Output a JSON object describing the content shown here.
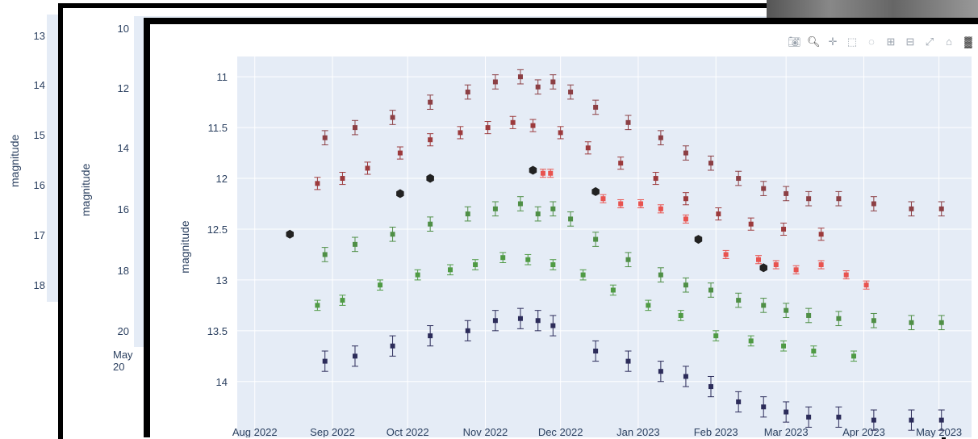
{
  "background_windows": [
    {
      "ylabel": "magnitude",
      "yticks": [
        "13",
        "14",
        "15",
        "16",
        "17",
        "18"
      ]
    },
    {
      "ylabel": "magnitude",
      "yticks": [
        "10",
        "12",
        "14",
        "16",
        "18",
        "20"
      ],
      "xtick_partial": "May 20"
    }
  ],
  "modebar": {
    "icons": [
      "camera-icon",
      "zoom-icon",
      "pan-icon",
      "box-select-icon",
      "lasso-select-icon",
      "zoom-in-icon",
      "zoom-out-icon",
      "autoscale-icon",
      "reset-axes-icon",
      "plotly-logo-icon"
    ]
  },
  "chart_data": {
    "type": "scatter",
    "title": "",
    "xlabel": "",
    "ylabel": "magnitude",
    "y_reversed": true,
    "ylim": [
      14.55,
      10.8
    ],
    "xlim": [
      "2022-07-25",
      "2023-05-14"
    ],
    "grid": true,
    "yticks": [
      11,
      11.5,
      12,
      12.5,
      13,
      13.5,
      14
    ],
    "yticks_labels": [
      "11",
      "11.5",
      "12",
      "12.5",
      "13",
      "13.5",
      "14"
    ],
    "xticks": [
      "2022-08-01",
      "2022-09-01",
      "2022-10-01",
      "2022-11-01",
      "2022-12-01",
      "2023-01-01",
      "2023-02-01",
      "2023-03-01",
      "2023-04-01",
      "2023-05-01"
    ],
    "xticks_labels": [
      "Aug 2022",
      "Sep 2022",
      "Oct 2022",
      "Nov 2022",
      "Dec 2022",
      "Jan 2023",
      "Feb 2023",
      "Mar 2023",
      "Apr 2023",
      "May 2023"
    ],
    "colors": {
      "brown_upper": "#8c3f44",
      "brown_lower": "#9c3a3c",
      "red": "#e8534f",
      "green_upper": "#4f8f46",
      "green_lower": "#4f9a44",
      "navy": "#2c2c5a",
      "black": "#222222"
    },
    "series": [
      {
        "key": "brown_upper",
        "x": [
          "2022-08-29",
          "2022-09-10",
          "2022-09-25",
          "2022-10-10",
          "2022-10-25",
          "2022-11-05",
          "2022-11-15",
          "2022-11-22",
          "2022-11-28",
          "2022-12-05",
          "2022-12-15",
          "2022-12-28",
          "2023-01-10",
          "2023-01-20",
          "2023-01-30",
          "2023-02-10",
          "2023-02-20",
          "2023-03-01",
          "2023-03-10",
          "2023-03-22",
          "2023-04-05",
          "2023-04-20",
          "2023-05-02"
        ],
        "y": [
          11.6,
          11.5,
          11.4,
          11.25,
          11.15,
          11.05,
          11.0,
          11.1,
          11.05,
          11.15,
          11.3,
          11.45,
          11.6,
          11.75,
          11.85,
          12.0,
          12.1,
          12.15,
          12.2,
          12.2,
          12.25,
          12.3,
          12.3
        ],
        "yerr": 0.07
      },
      {
        "key": "brown_lower",
        "x": [
          "2022-08-26",
          "2022-09-05",
          "2022-09-15",
          "2022-09-28",
          "2022-10-10",
          "2022-10-22",
          "2022-11-02",
          "2022-11-12",
          "2022-11-20",
          "2022-12-01",
          "2022-12-12",
          "2022-12-25",
          "2023-01-08",
          "2023-01-20",
          "2023-02-02",
          "2023-02-15",
          "2023-02-28",
          "2023-03-15"
        ],
        "y": [
          12.05,
          12.0,
          11.9,
          11.75,
          11.62,
          11.55,
          11.5,
          11.45,
          11.48,
          11.55,
          11.7,
          11.85,
          12.0,
          12.2,
          12.35,
          12.45,
          12.5,
          12.55
        ],
        "yerr": 0.06
      },
      {
        "key": "red",
        "x": [
          "2022-11-24",
          "2022-11-27",
          "2022-12-18",
          "2022-12-25",
          "2023-01-02",
          "2023-01-10",
          "2023-01-20",
          "2023-02-05",
          "2023-02-18",
          "2023-02-25",
          "2023-03-05",
          "2023-03-15",
          "2023-03-25",
          "2023-04-02"
        ],
        "y": [
          11.95,
          11.95,
          12.2,
          12.25,
          12.25,
          12.3,
          12.4,
          12.75,
          12.8,
          12.85,
          12.9,
          12.85,
          12.95,
          13.05
        ],
        "yerr": 0.04
      },
      {
        "key": "green_upper",
        "x": [
          "2022-08-29",
          "2022-09-10",
          "2022-09-25",
          "2022-10-10",
          "2022-10-25",
          "2022-11-05",
          "2022-11-15",
          "2022-11-22",
          "2022-11-28",
          "2022-12-05",
          "2022-12-15",
          "2022-12-28",
          "2023-01-10",
          "2023-01-20",
          "2023-01-30",
          "2023-02-10",
          "2023-02-20",
          "2023-03-01",
          "2023-03-10",
          "2023-03-22",
          "2023-04-05",
          "2023-04-20",
          "2023-05-02"
        ],
        "y": [
          12.75,
          12.65,
          12.55,
          12.45,
          12.35,
          12.3,
          12.25,
          12.35,
          12.3,
          12.4,
          12.6,
          12.8,
          12.95,
          13.05,
          13.1,
          13.2,
          13.25,
          13.3,
          13.35,
          13.38,
          13.4,
          13.42,
          13.42
        ],
        "yerr": 0.07
      },
      {
        "key": "green_lower",
        "x": [
          "2022-08-26",
          "2022-09-05",
          "2022-09-20",
          "2022-10-05",
          "2022-10-18",
          "2022-10-28",
          "2022-11-08",
          "2022-11-18",
          "2022-11-28",
          "2022-12-10",
          "2022-12-22",
          "2023-01-05",
          "2023-01-18",
          "2023-02-01",
          "2023-02-15",
          "2023-02-28",
          "2023-03-12",
          "2023-03-28"
        ],
        "y": [
          13.25,
          13.2,
          13.05,
          12.95,
          12.9,
          12.85,
          12.78,
          12.8,
          12.85,
          12.95,
          13.1,
          13.25,
          13.35,
          13.55,
          13.6,
          13.65,
          13.7,
          13.75
        ],
        "yerr": 0.05
      },
      {
        "key": "navy",
        "x": [
          "2022-08-29",
          "2022-09-10",
          "2022-09-25",
          "2022-10-10",
          "2022-10-25",
          "2022-11-05",
          "2022-11-15",
          "2022-11-22",
          "2022-11-28",
          "2022-12-15",
          "2022-12-28",
          "2023-01-10",
          "2023-01-20",
          "2023-01-30",
          "2023-02-10",
          "2023-02-20",
          "2023-03-01",
          "2023-03-10",
          "2023-03-22",
          "2023-04-05",
          "2023-04-20",
          "2023-05-02"
        ],
        "y": [
          13.8,
          13.75,
          13.65,
          13.55,
          13.5,
          13.4,
          13.38,
          13.4,
          13.45,
          13.7,
          13.8,
          13.9,
          13.95,
          14.05,
          14.2,
          14.25,
          14.3,
          14.35,
          14.35,
          14.38,
          14.38,
          14.38
        ],
        "yerr": 0.1
      },
      {
        "key": "black",
        "marker": "hexagon",
        "x": [
          "2022-08-15",
          "2022-09-28",
          "2022-10-10",
          "2022-11-20",
          "2022-12-15",
          "2023-01-25",
          "2023-02-20"
        ],
        "y": [
          12.55,
          12.15,
          12.0,
          11.92,
          12.13,
          12.6,
          12.88
        ]
      }
    ]
  }
}
